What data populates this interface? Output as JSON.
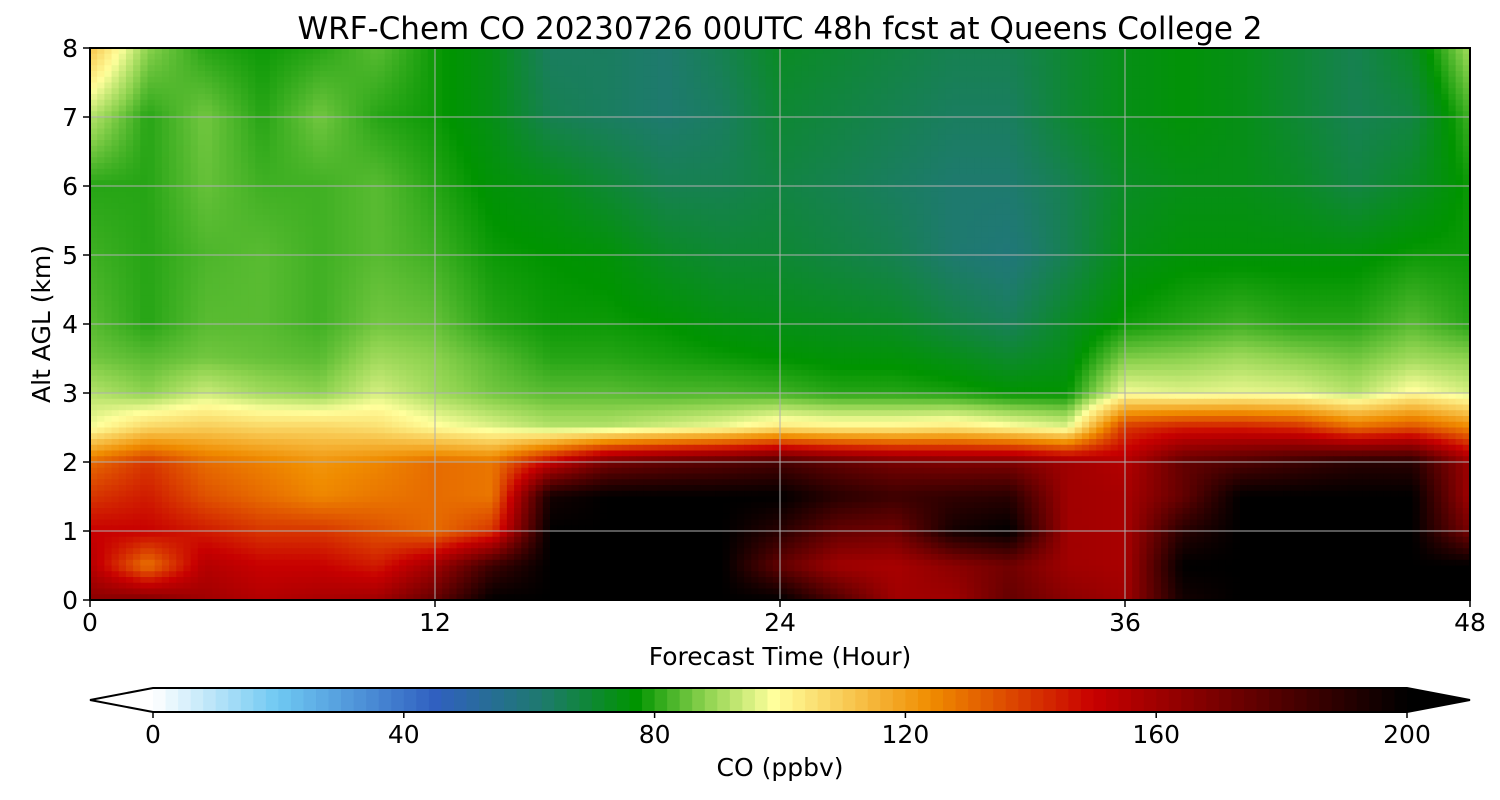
{
  "chart_data": {
    "type": "heatmap",
    "title": "WRF-Chem CO  20230726 00UTC 48h fcst at Queens College 2",
    "xlabel": "Forecast Time (Hour)",
    "ylabel": "Alt AGL (km)",
    "xlim": [
      0,
      48
    ],
    "ylim": [
      0,
      8
    ],
    "xticks": [
      "0",
      "12",
      "24",
      "36",
      "48"
    ],
    "yticks": [
      "0",
      "1",
      "2",
      "3",
      "4",
      "5",
      "6",
      "7",
      "8"
    ],
    "grid": true,
    "colorbar": {
      "label": "CO  (ppbv)",
      "ticks": [
        "0",
        "40",
        "80",
        "120",
        "160",
        "200"
      ],
      "range": [
        0,
        200
      ],
      "extend": "both",
      "colors": [
        {
          "v": 0,
          "c": "#ffffff"
        },
        {
          "v": 20,
          "c": "#6ec8f2"
        },
        {
          "v": 45,
          "c": "#3060c0"
        },
        {
          "v": 62,
          "c": "#1e7a6e"
        },
        {
          "v": 77,
          "c": "#009400"
        },
        {
          "v": 88,
          "c": "#8cd24e"
        },
        {
          "v": 99,
          "c": "#ffff9c"
        },
        {
          "v": 124,
          "c": "#f08c00"
        },
        {
          "v": 150,
          "c": "#c80000"
        },
        {
          "v": 175,
          "c": "#640000"
        },
        {
          "v": 200,
          "c": "#000000"
        }
      ]
    },
    "hours": [
      0,
      2,
      4,
      6,
      8,
      10,
      12,
      14,
      16,
      18,
      20,
      22,
      24,
      26,
      28,
      30,
      32,
      34,
      36,
      38,
      40,
      42,
      44,
      46,
      48
    ],
    "altitudes_km": [
      0,
      0.5,
      1,
      1.5,
      2,
      2.5,
      3,
      3.5,
      4,
      5,
      6,
      7,
      8
    ],
    "values": [
      [
        165,
        168,
        160,
        155,
        158,
        160,
        175,
        200,
        200,
        200,
        200,
        200,
        200,
        180,
        160,
        160,
        175,
        165,
        160,
        195,
        200,
        200,
        200,
        200,
        200
      ],
      [
        155,
        128,
        155,
        150,
        150,
        145,
        160,
        185,
        200,
        200,
        200,
        200,
        175,
        160,
        158,
        165,
        172,
        160,
        158,
        200,
        200,
        200,
        200,
        200,
        200
      ],
      [
        150,
        150,
        145,
        140,
        140,
        135,
        130,
        140,
        200,
        200,
        200,
        200,
        190,
        175,
        172,
        195,
        200,
        160,
        158,
        190,
        200,
        200,
        200,
        200,
        170
      ],
      [
        140,
        145,
        135,
        130,
        125,
        128,
        130,
        128,
        195,
        200,
        200,
        200,
        200,
        190,
        185,
        188,
        190,
        160,
        158,
        175,
        200,
        200,
        200,
        200,
        160
      ],
      [
        130,
        140,
        130,
        126,
        122,
        125,
        130,
        128,
        150,
        170,
        175,
        178,
        182,
        175,
        170,
        168,
        168,
        160,
        155,
        175,
        180,
        185,
        190,
        190,
        160
      ],
      [
        98,
        108,
        110,
        108,
        108,
        106,
        100,
        96,
        92,
        92,
        95,
        98,
        104,
        102,
        102,
        104,
        100,
        96,
        140,
        145,
        145,
        142,
        130,
        135,
        125
      ],
      [
        92,
        88,
        94,
        90,
        88,
        95,
        90,
        86,
        84,
        84,
        83,
        83,
        82,
        80,
        80,
        79,
        77,
        77,
        98,
        96,
        97,
        96,
        92,
        100,
        95
      ],
      [
        86,
        84,
        86,
        85,
        84,
        90,
        88,
        84,
        80,
        80,
        79,
        78,
        77,
        76,
        76,
        74,
        71,
        74,
        87,
        88,
        90,
        88,
        86,
        90,
        88
      ],
      [
        84,
        80,
        84,
        84,
        82,
        86,
        85,
        80,
        78,
        78,
        77,
        75,
        74,
        73,
        72,
        68,
        65,
        72,
        78,
        80,
        82,
        80,
        80,
        84,
        80
      ],
      [
        82,
        80,
        83,
        84,
        82,
        84,
        82,
        78,
        77,
        76,
        72,
        70,
        70,
        68,
        66,
        62,
        60,
        66,
        74,
        76,
        76,
        76,
        76,
        78,
        78
      ],
      [
        80,
        80,
        85,
        82,
        82,
        84,
        80,
        76,
        74,
        70,
        66,
        66,
        68,
        66,
        64,
        62,
        62,
        66,
        72,
        74,
        74,
        72,
        68,
        72,
        78
      ],
      [
        92,
        80,
        86,
        80,
        86,
        80,
        78,
        74,
        66,
        64,
        62,
        64,
        70,
        68,
        66,
        64,
        64,
        70,
        74,
        76,
        74,
        70,
        66,
        68,
        82
      ],
      [
        112,
        88,
        80,
        78,
        80,
        84,
        78,
        74,
        64,
        64,
        62,
        66,
        72,
        70,
        68,
        66,
        66,
        70,
        74,
        76,
        74,
        70,
        66,
        72,
        90
      ]
    ]
  }
}
